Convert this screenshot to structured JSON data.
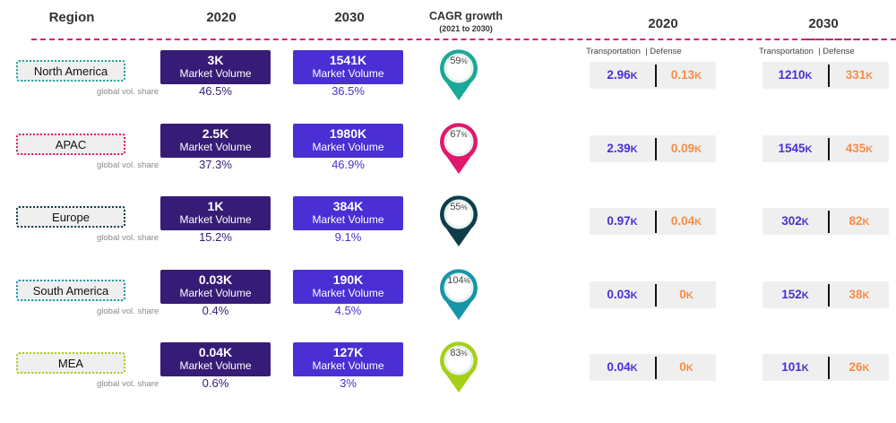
{
  "header": {
    "region": "Region",
    "y2020": "2020",
    "y2030": "2030",
    "cagr": "CAGR growth",
    "cagr_sub": "(2021 to 2030)",
    "right_2020": "2020",
    "right_2030": "2030"
  },
  "segment_labels": {
    "left_2020": "Transportation  | Defense",
    "left_2030": "Transportation  | Defense"
  },
  "labels": {
    "market_volume": "Market Volume",
    "global_share": "global vol. share",
    "unit": "K",
    "pct": "%"
  },
  "colors": {
    "vol_2020": "#361c76",
    "vol_2030": "#4b2fd4",
    "transportation": "#4b2fd4",
    "defense": "#f68c46",
    "dash": "#d62470"
  },
  "rows": [
    {
      "region": "North America",
      "color": "#1aa898",
      "vol_2020": "3K",
      "vol_2030": "1541K",
      "share_2020": "46.5%",
      "share_2030": "36.5%",
      "cagr": "59",
      "t2020": "2.96",
      "d2020": "0.13",
      "t2030": "1210",
      "d2030": "331"
    },
    {
      "region": "APAC",
      "color": "#e0176c",
      "vol_2020": "2.5K",
      "vol_2030": "1980K",
      "share_2020": "37.3%",
      "share_2030": "46.9%",
      "cagr": "67",
      "t2020": "2.39",
      "d2020": "0.09",
      "t2030": "1545",
      "d2030": "435"
    },
    {
      "region": "Europe",
      "color": "#0e3d4a",
      "vol_2020": "1K",
      "vol_2030": "384K",
      "share_2020": "15.2%",
      "share_2030": "9.1%",
      "cagr": "55",
      "t2020": "0.97",
      "d2020": "0.04",
      "t2030": "302",
      "d2030": "82"
    },
    {
      "region": "South America",
      "color": "#1795a8",
      "vol_2020": "0.03K",
      "vol_2030": "190K",
      "share_2020": "0.4%",
      "share_2030": "4.5%",
      "cagr": "104",
      "t2020": "0.03",
      "d2020": "0",
      "t2030": "152",
      "d2030": "38"
    },
    {
      "region": "MEA",
      "color": "#a6cf18",
      "vol_2020": "0.04K",
      "vol_2030": "127K",
      "share_2020": "0.6%",
      "share_2030": "3%",
      "cagr": "83",
      "t2020": "0.04",
      "d2020": "0",
      "t2030": "101",
      "d2030": "26"
    }
  ]
}
